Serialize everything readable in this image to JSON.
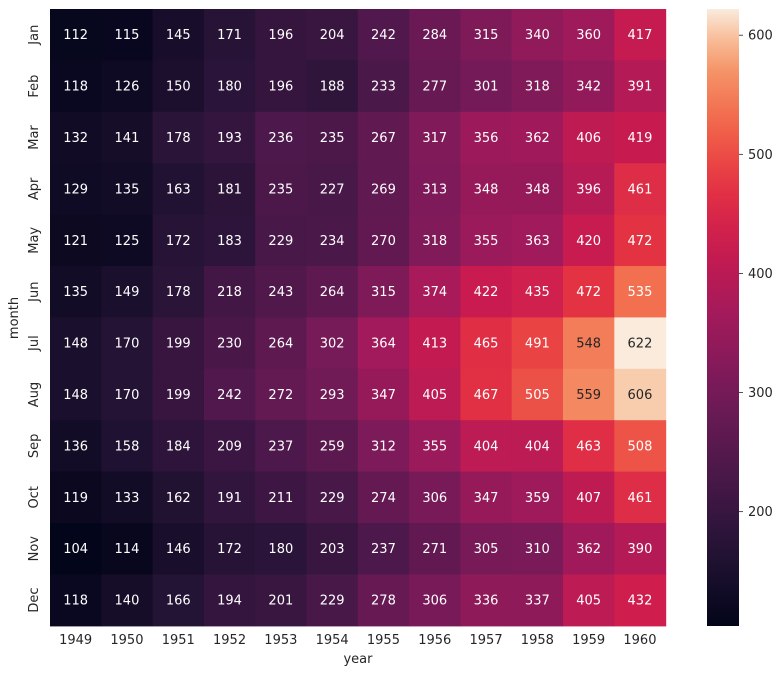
{
  "chart_data": {
    "type": "heatmap",
    "title": "",
    "xlabel": "year",
    "ylabel": "month",
    "x_categories": [
      "1949",
      "1950",
      "1951",
      "1952",
      "1953",
      "1954",
      "1955",
      "1956",
      "1957",
      "1958",
      "1959",
      "1960"
    ],
    "y_categories": [
      "Jan",
      "Feb",
      "Mar",
      "Apr",
      "May",
      "Jun",
      "Jul",
      "Aug",
      "Sep",
      "Oct",
      "Nov",
      "Dec"
    ],
    "values": [
      [
        112,
        115,
        145,
        171,
        196,
        204,
        242,
        284,
        315,
        340,
        360,
        417
      ],
      [
        118,
        126,
        150,
        180,
        196,
        188,
        233,
        277,
        301,
        318,
        342,
        391
      ],
      [
        132,
        141,
        178,
        193,
        236,
        235,
        267,
        317,
        356,
        362,
        406,
        419
      ],
      [
        129,
        135,
        163,
        181,
        235,
        227,
        269,
        313,
        348,
        348,
        396,
        461
      ],
      [
        121,
        125,
        172,
        183,
        229,
        234,
        270,
        318,
        355,
        363,
        420,
        472
      ],
      [
        135,
        149,
        178,
        218,
        243,
        264,
        315,
        374,
        422,
        435,
        472,
        535
      ],
      [
        148,
        170,
        199,
        230,
        264,
        302,
        364,
        413,
        465,
        491,
        548,
        622
      ],
      [
        148,
        170,
        199,
        242,
        272,
        293,
        347,
        405,
        467,
        505,
        559,
        606
      ],
      [
        136,
        158,
        184,
        209,
        237,
        259,
        312,
        355,
        404,
        404,
        463,
        508
      ],
      [
        119,
        133,
        162,
        191,
        211,
        229,
        274,
        306,
        347,
        359,
        407,
        461
      ],
      [
        104,
        114,
        146,
        172,
        180,
        203,
        237,
        271,
        305,
        310,
        362,
        390
      ],
      [
        118,
        140,
        166,
        194,
        201,
        229,
        278,
        306,
        336,
        337,
        405,
        432
      ]
    ],
    "value_range": [
      104,
      622
    ],
    "colorbar": {
      "ticks": [
        200,
        300,
        400,
        500,
        600
      ],
      "colormap": "rocket"
    },
    "grid": false,
    "annotated": true
  }
}
